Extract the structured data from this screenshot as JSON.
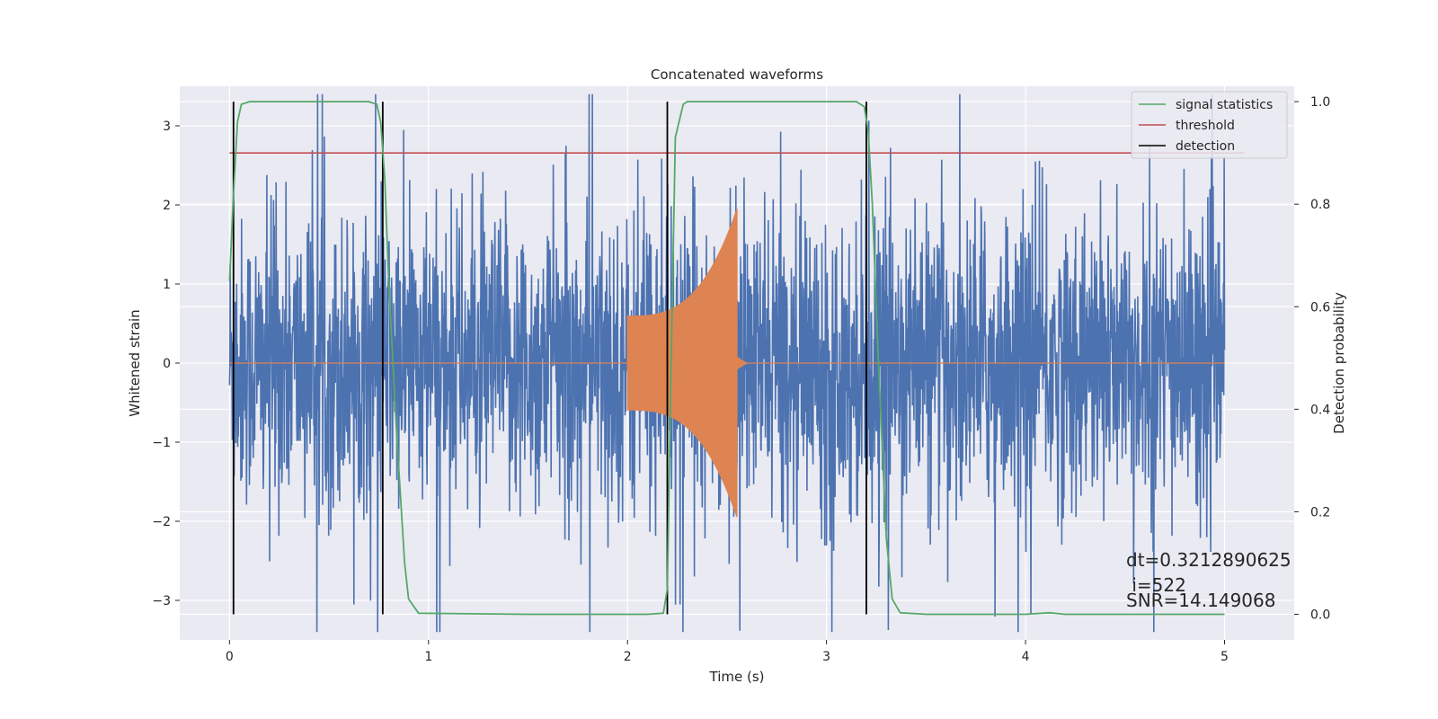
{
  "chart_data": {
    "type": "line",
    "title": "Concatenated waveforms",
    "xlabel": "Time (s)",
    "ylabel_left": "Whitened strain",
    "ylabel_right": "Detection probability",
    "xlim": [
      -0.25,
      5.35
    ],
    "ylim_left": [
      -3.5,
      3.5
    ],
    "ylim_right": [
      -0.05,
      1.03
    ],
    "xticks": [
      0,
      1,
      2,
      3,
      4,
      5
    ],
    "yticks_left": [
      3,
      2,
      1,
      0,
      -1,
      -2,
      -3
    ],
    "yticks_right": [
      1.0,
      0.8,
      0.6,
      0.4,
      0.2,
      0.0
    ],
    "grid": true,
    "legend_position": "top-right",
    "colors": {
      "noise": "#4c72b0",
      "signal": "#dd8452",
      "statistics": "#55a868",
      "threshold": "#c44e52",
      "detection": "#000000",
      "background": "#eaeaf2"
    },
    "series": [
      {
        "name": "signal statistics",
        "axis": "right",
        "x": [
          0.0,
          0.02,
          0.04,
          0.06,
          0.1,
          0.2,
          0.6,
          0.7,
          0.74,
          0.76,
          0.78,
          0.8,
          0.84,
          0.88,
          0.9,
          0.95,
          1.5,
          2.0,
          2.1,
          2.18,
          2.2,
          2.22,
          2.24,
          2.28,
          2.3,
          2.5,
          3.0,
          3.15,
          3.19,
          3.21,
          3.23,
          3.26,
          3.3,
          3.33,
          3.37,
          3.5,
          4.0,
          4.12,
          4.2,
          5.0
        ],
        "y": [
          0.65,
          0.82,
          0.96,
          0.995,
          1.0,
          1.0,
          1.0,
          1.0,
          0.995,
          0.96,
          0.85,
          0.65,
          0.35,
          0.1,
          0.03,
          0.002,
          0.0,
          0.0,
          0.0,
          0.002,
          0.05,
          0.5,
          0.93,
          0.995,
          1.0,
          1.0,
          1.0,
          1.0,
          0.99,
          0.94,
          0.8,
          0.5,
          0.15,
          0.03,
          0.003,
          0.0,
          0.0,
          0.003,
          0.0,
          0.0
        ]
      },
      {
        "name": "threshold",
        "axis": "right",
        "x": [
          0.0,
          5.1
        ],
        "y": [
          0.9,
          0.9
        ]
      },
      {
        "name": "detection",
        "axis": "right",
        "type": "vlines",
        "x": [
          0.02,
          0.77,
          2.2,
          3.2
        ],
        "ymin": 0.0,
        "ymax": 1.0
      },
      {
        "axis": "left",
        "type": "noise",
        "x_range": [
          0.0,
          5.0
        ],
        "amplitude": 3.4
      },
      {
        "axis": "left",
        "type": "chirp",
        "x_range": [
          2.0,
          2.55
        ],
        "amplitude_start": 0.6,
        "amplitude_peak": 1.95
      }
    ],
    "annotations": [
      "dt=0.3212890625",
      " i=522",
      "SNR=14.149068"
    ]
  }
}
